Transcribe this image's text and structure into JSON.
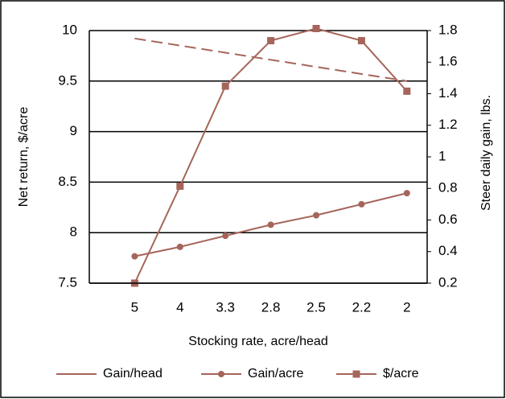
{
  "chart_data": {
    "type": "line",
    "x_label": "Stocking rate, acre/head",
    "y_label": "Net return, $/acre",
    "y2_label": "Steer daily gain, lbs.",
    "categories": [
      "5",
      "4",
      "3.3",
      "2.8",
      "2.5",
      "2.2",
      "2"
    ],
    "ylim": [
      7.5,
      10
    ],
    "yticks": [
      7.5,
      8,
      8.5,
      9,
      9.5,
      10
    ],
    "y2lim": [
      0.2,
      1.8
    ],
    "y2ticks": [
      0.2,
      0.4,
      0.6,
      0.8,
      1,
      1.2,
      1.4,
      1.6,
      1.8
    ],
    "grid": true,
    "legend": "bottom",
    "series": [
      {
        "name": "Gain/head",
        "color": "#a5655a",
        "axis": "y2",
        "dashed": true,
        "marker": "none",
        "values": [
          1.75,
          1.705,
          1.66,
          1.615,
          1.57,
          1.525,
          1.48
        ]
      },
      {
        "name": "Gain/acre",
        "color": "#a5655a",
        "axis": "y2",
        "dashed": false,
        "marker": "circle",
        "values": [
          0.37,
          0.43,
          0.5,
          0.57,
          0.63,
          0.7,
          0.77
        ]
      },
      {
        "name": "$/acre",
        "color": "#a5655a",
        "axis": "y",
        "dashed": false,
        "marker": "square",
        "values": [
          7.5,
          8.46,
          9.45,
          9.9,
          10.02,
          9.9,
          9.4
        ]
      }
    ]
  }
}
